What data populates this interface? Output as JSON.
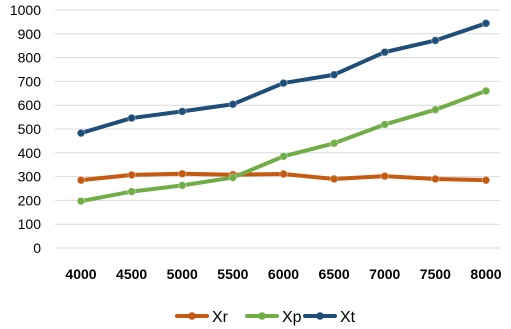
{
  "chart_data": {
    "type": "line",
    "title": "",
    "xlabel": "",
    "ylabel": "",
    "categories": [
      "4000",
      "4500",
      "5000",
      "5500",
      "6000",
      "6500",
      "7000",
      "7500",
      "8000"
    ],
    "ylim": [
      0,
      1000
    ],
    "yticks": [
      "0",
      "100",
      "200",
      "300",
      "400",
      "500",
      "600",
      "700",
      "800",
      "900",
      "1000"
    ],
    "grid": true,
    "legend_position": "bottom",
    "series": [
      {
        "name": "Xr",
        "color": "#c55a11",
        "values": [
          285,
          307,
          312,
          308,
          311,
          290,
          302,
          290,
          285
        ]
      },
      {
        "name": "Xp",
        "color": "#70ad47",
        "values": [
          197,
          237,
          263,
          296,
          385,
          440,
          519,
          581,
          660
        ]
      },
      {
        "name": "Xt",
        "color": "#1f4e79",
        "values": [
          483,
          546,
          574,
          604,
          693,
          728,
          823,
          872,
          944
        ]
      }
    ]
  }
}
